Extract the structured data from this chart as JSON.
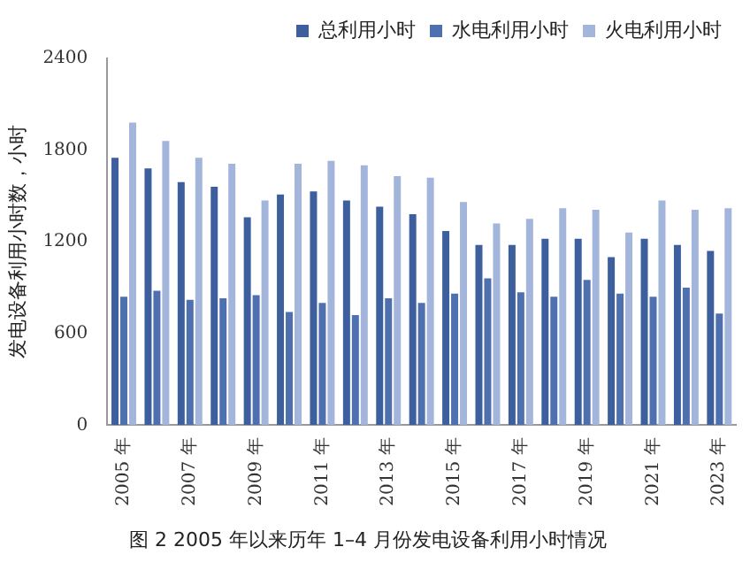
{
  "chart_data": {
    "type": "bar",
    "title": "图 2 2005 年以来历年 1–4 月份发电设备利用小时情况",
    "ylabel": "发电设备利用小时数，小时",
    "categories": [
      "2005 年",
      null,
      "2007 年",
      null,
      "2009 年",
      null,
      "2011 年",
      null,
      "2013 年",
      null,
      "2015 年",
      null,
      "2017 年",
      null,
      "2019 年",
      null,
      "2021 年",
      null,
      "2023 年"
    ],
    "series": [
      {
        "name": "总利用小时",
        "color": "#3d5f9e",
        "values": [
          1750,
          1680,
          1590,
          1560,
          1360,
          1510,
          1530,
          1470,
          1430,
          1380,
          1270,
          1180,
          1180,
          1220,
          1220,
          1100,
          1220,
          1180,
          1140
        ]
      },
      {
        "name": "水电利用小时",
        "color": "#4f70ae",
        "values": [
          840,
          880,
          820,
          830,
          850,
          740,
          800,
          720,
          830,
          800,
          860,
          960,
          870,
          840,
          950,
          860,
          840,
          900,
          730
        ]
      },
      {
        "name": "火电利用小时",
        "color": "#a3b5db",
        "values": [
          1980,
          1860,
          1750,
          1710,
          1470,
          1710,
          1730,
          1700,
          1630,
          1620,
          1460,
          1320,
          1350,
          1420,
          1410,
          1260,
          1470,
          1410,
          1420
        ]
      }
    ],
    "ylim": [
      0,
      2400
    ],
    "yticks": [
      0,
      600,
      1200,
      1800,
      2400
    ],
    "grid": false,
    "legend": "top right"
  }
}
